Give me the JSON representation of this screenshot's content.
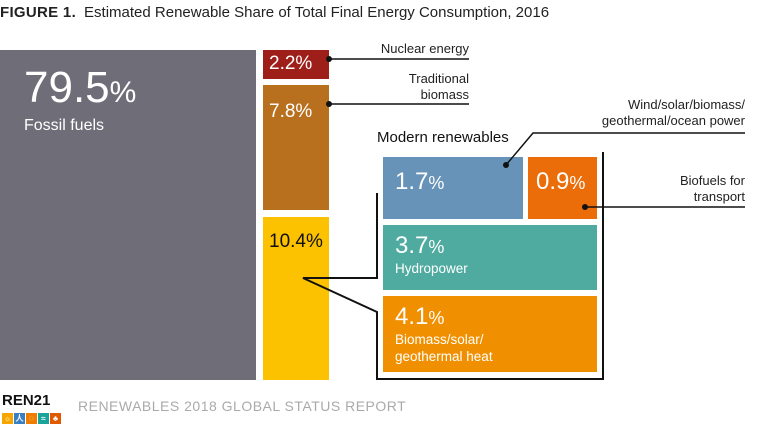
{
  "title": {
    "figure": "FIGURE 1.",
    "text": "Estimated Renewable Share of Total Final Energy Consumption, 2016"
  },
  "segments": {
    "fossil": {
      "value": "79.5",
      "unit": "%",
      "label": "Fossil fuels",
      "color": "#6f6d78"
    },
    "nuclear": {
      "value": "2.2%",
      "label": "Nuclear energy",
      "color": "#9e1f1a"
    },
    "traditional": {
      "value": "7.8%",
      "label": "Traditional biomass",
      "color": "#b86f1e"
    },
    "modern": {
      "value": "10.4%",
      "label": "Modern renewables",
      "color": "#fcc200"
    },
    "power": {
      "value": "1.7",
      "unit": "%",
      "label": "Wind/solar/biomass/ geothermal/ocean power",
      "color": "#6793b8"
    },
    "biofuels": {
      "value": "0.9",
      "unit": "%",
      "label": "Biofuels for transport",
      "color": "#eb6d0a"
    },
    "hydro": {
      "value": "3.7",
      "unit": "%",
      "label": "Hydropower",
      "color": "#4faba0"
    },
    "heat": {
      "value": "4.1",
      "unit": "%",
      "label": "Biomass/solar/ geothermal heat",
      "color": "#f09000"
    }
  },
  "footer": {
    "logo": "REN21",
    "report": "RENEWABLES 2018 GLOBAL STATUS REPORT"
  }
}
